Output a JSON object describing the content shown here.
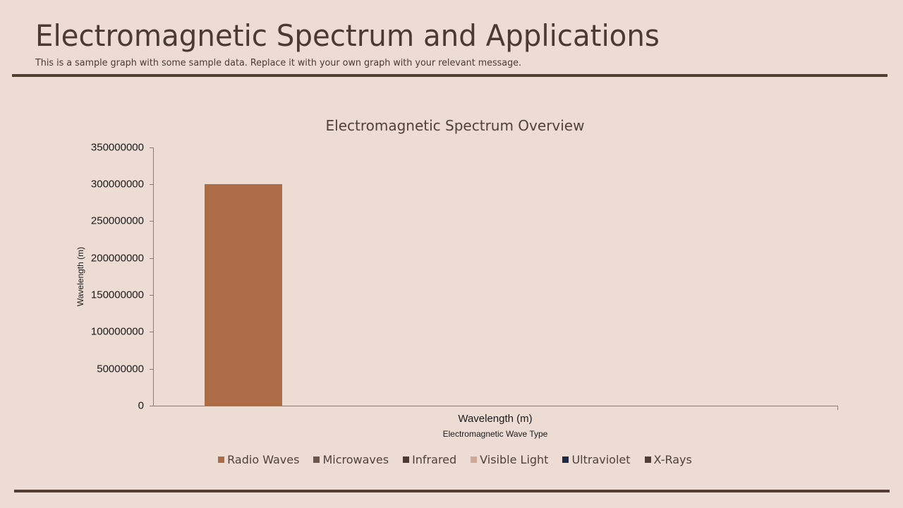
{
  "header": {
    "title": "Electromagnetic Spectrum and Applications",
    "subtitle": "This is a sample graph with some sample data. Replace it with your own graph with your relevant message."
  },
  "colors": {
    "background": "#ecdcd3",
    "rule": "#513d32",
    "bar": "#ad6c45"
  },
  "chart_data": {
    "type": "bar",
    "title": "Electromagnetic Spectrum Overview",
    "xlabel": "Electromagnetic Wave Type",
    "ylabel": "Wavelength  (m)",
    "categories": [
      "Wavelength (m)"
    ],
    "series": [
      {
        "name": "Radio Waves",
        "color": "#ad6c45",
        "values": [
          300000000
        ]
      },
      {
        "name": "Microwaves",
        "color": "#6b564b",
        "values": [
          0
        ]
      },
      {
        "name": "Infrared",
        "color": "#4a3a31",
        "values": [
          0
        ]
      },
      {
        "name": "Visible Light",
        "color": "#cfa995",
        "values": [
          0
        ]
      },
      {
        "name": "Ultraviolet",
        "color": "#1a2a48",
        "values": [
          0
        ]
      },
      {
        "name": "X-Rays",
        "color": "#4f3f36",
        "values": [
          0
        ]
      }
    ],
    "ylim": [
      0,
      350000000
    ],
    "yticks": [
      "350000000",
      "300000000",
      "250000000",
      "200000000",
      "150000000",
      "100000000",
      "50000000",
      "0"
    ],
    "grid": false,
    "legend_position": "bottom"
  }
}
